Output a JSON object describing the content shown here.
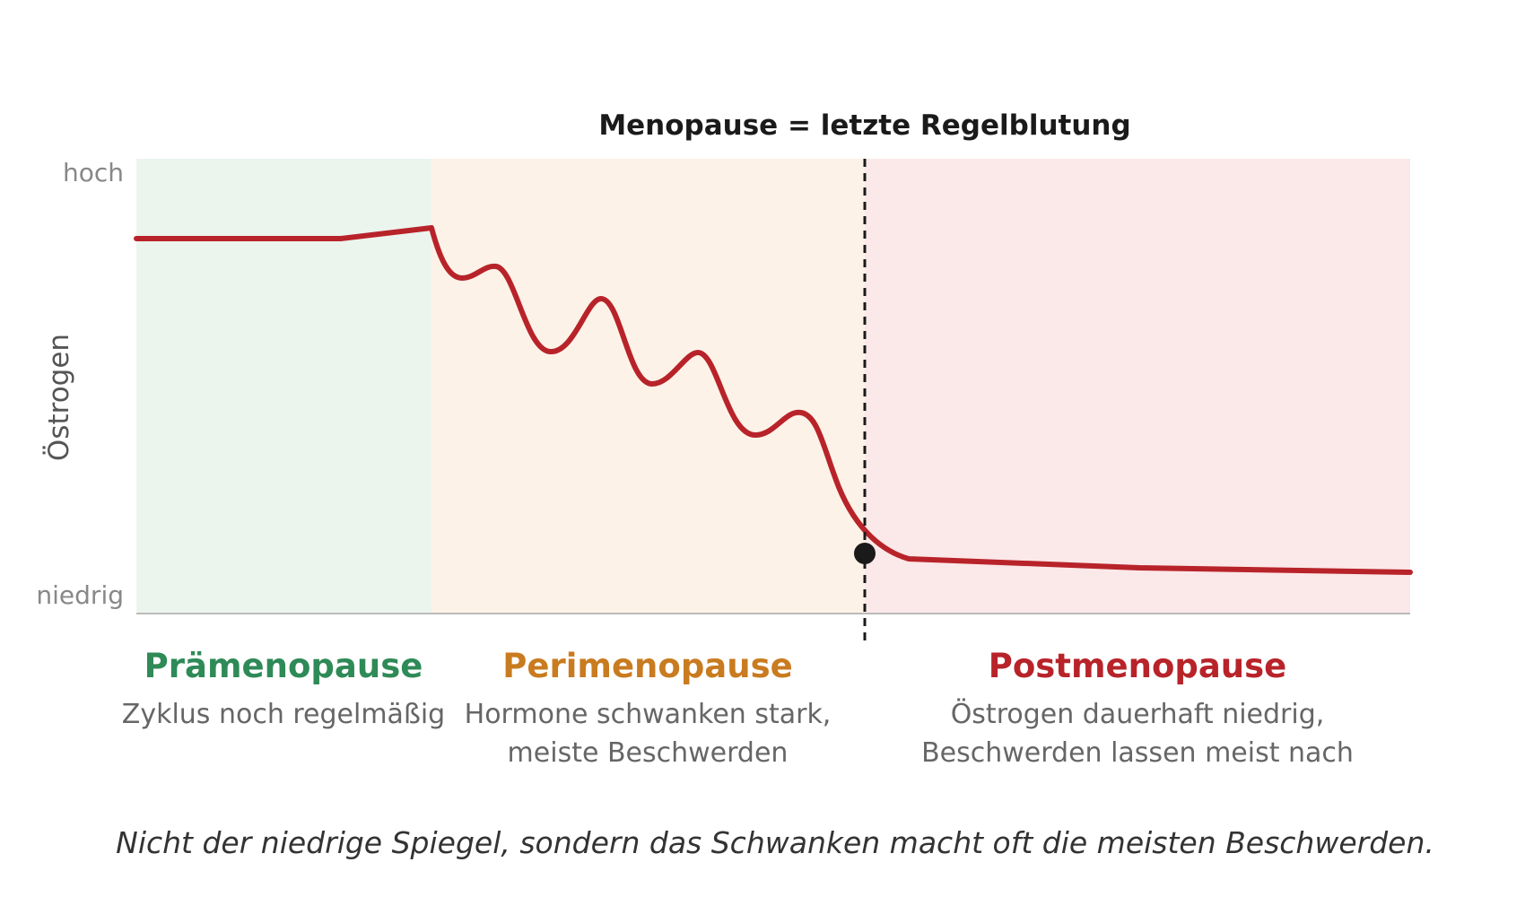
{
  "menopause_label": "Menopause = letzte Regelblutung",
  "y_axis": {
    "label": "Östrogen",
    "high": "hoch",
    "low": "niedrig"
  },
  "phases": [
    {
      "name": "Prämenopause",
      "color": "#2e8a57",
      "bg": "#ecf4ee",
      "description": [
        "Zyklus noch regelmäßig"
      ]
    },
    {
      "name": "Perimenopause",
      "color": "#c97b1f",
      "bg": "#fdf2e8",
      "description": [
        "Hormone schwanken stark,",
        "meiste Beschwerden"
      ]
    },
    {
      "name": "Postmenopause",
      "color": "#b8232a",
      "bg": "#fbe8e8",
      "description": [
        "Östrogen dauerhaft niedrig,",
        "Beschwerden lassen meist nach"
      ]
    }
  ],
  "curve_color": "#b8232a",
  "footer_note": "Nicht der niedrige Spiegel, sondern das Schwanken macht oft die meisten Beschwerden."
}
